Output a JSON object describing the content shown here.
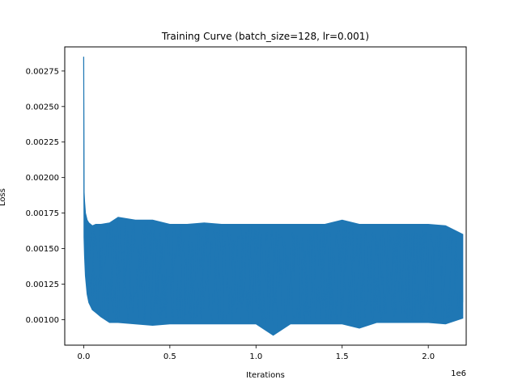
{
  "chart_data": {
    "type": "line",
    "title": "Training Curve (batch_size=128, lr=0.001)",
    "xlabel": "Iterations",
    "ylabel": "Loss",
    "x_offset_label": "1e6",
    "xlim": [
      -0.11,
      2.22
    ],
    "ylim": [
      0.00082,
      0.00292
    ],
    "x_ticks": [
      0.0,
      0.5,
      1.0,
      1.5,
      2.0
    ],
    "x_tick_labels": [
      "0.0",
      "0.5",
      "1.0",
      "1.5",
      "2.0"
    ],
    "y_ticks": [
      0.001,
      0.00125,
      0.0015,
      0.00175,
      0.002,
      0.00225,
      0.0025,
      0.00275
    ],
    "y_tick_labels": [
      "0.00100",
      "0.00125",
      "0.00150",
      "0.00175",
      "0.00200",
      "0.00225",
      "0.00250",
      "0.00275"
    ],
    "grid": false,
    "series": [
      {
        "color": "#1f77b4",
        "x": [
          0.0,
          0.002,
          0.005,
          0.01,
          0.02,
          0.03,
          0.05,
          0.07,
          0.1,
          0.15,
          0.2,
          0.3,
          0.4,
          0.5,
          0.6,
          0.7,
          0.8,
          0.9,
          1.0,
          1.1,
          1.2,
          1.3,
          1.4,
          1.5,
          1.6,
          1.7,
          1.8,
          1.9,
          2.0,
          2.1,
          2.2
        ],
        "y_upper": [
          0.00285,
          0.0019,
          0.00183,
          0.00175,
          0.0017,
          0.00168,
          0.00166,
          0.00167,
          0.00167,
          0.00168,
          0.00172,
          0.0017,
          0.0017,
          0.00167,
          0.00167,
          0.00168,
          0.00167,
          0.00167,
          0.00167,
          0.00167,
          0.00167,
          0.00167,
          0.00167,
          0.0017,
          0.00167,
          0.00167,
          0.00167,
          0.00167,
          0.00167,
          0.00166,
          0.0016
        ],
        "y_lower": [
          0.00285,
          0.00158,
          0.00145,
          0.00131,
          0.00118,
          0.00112,
          0.00107,
          0.00105,
          0.00102,
          0.00098,
          0.00098,
          0.00097,
          0.00096,
          0.00097,
          0.00097,
          0.00097,
          0.00097,
          0.00097,
          0.00097,
          0.00089,
          0.00097,
          0.00097,
          0.00097,
          0.00097,
          0.00094,
          0.00098,
          0.00098,
          0.00098,
          0.00098,
          0.00097,
          0.00101
        ]
      }
    ]
  }
}
